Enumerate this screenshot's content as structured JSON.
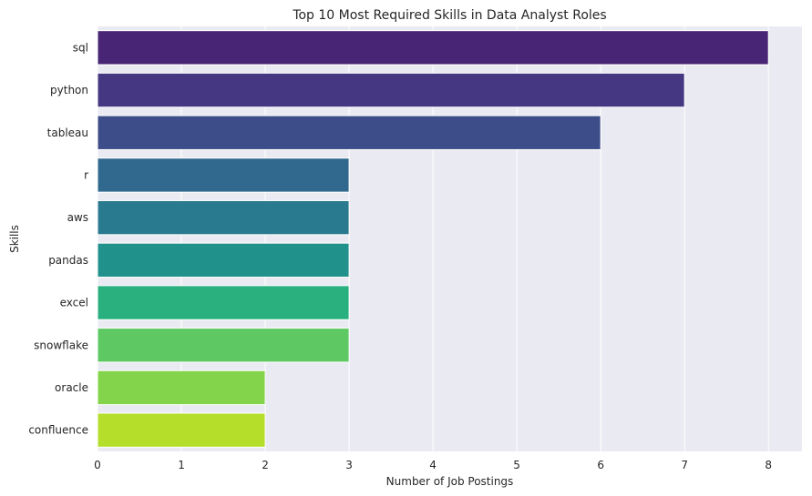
{
  "chart_data": {
    "type": "bar",
    "orientation": "horizontal",
    "title": "Top 10 Most Required Skills in Data Analyst Roles",
    "xlabel": "Number of Job Postings",
    "ylabel": "Skills",
    "categories": [
      "sql",
      "python",
      "tableau",
      "r",
      "aws",
      "pandas",
      "excel",
      "snowflake",
      "oracle",
      "confluence"
    ],
    "values": [
      8,
      7,
      6,
      3,
      3,
      3,
      3,
      3,
      2,
      2
    ],
    "colors": [
      "#482575",
      "#453781",
      "#3d4d8a",
      "#31688e",
      "#297a8e",
      "#21918c",
      "#2ab07f",
      "#5ec962",
      "#84d44b",
      "#b5de2b"
    ],
    "xlim": [
      0,
      8.4
    ],
    "xticks": [
      0,
      1,
      2,
      3,
      4,
      5,
      6,
      7,
      8
    ],
    "grid": true,
    "background": "#eaeaf2"
  }
}
